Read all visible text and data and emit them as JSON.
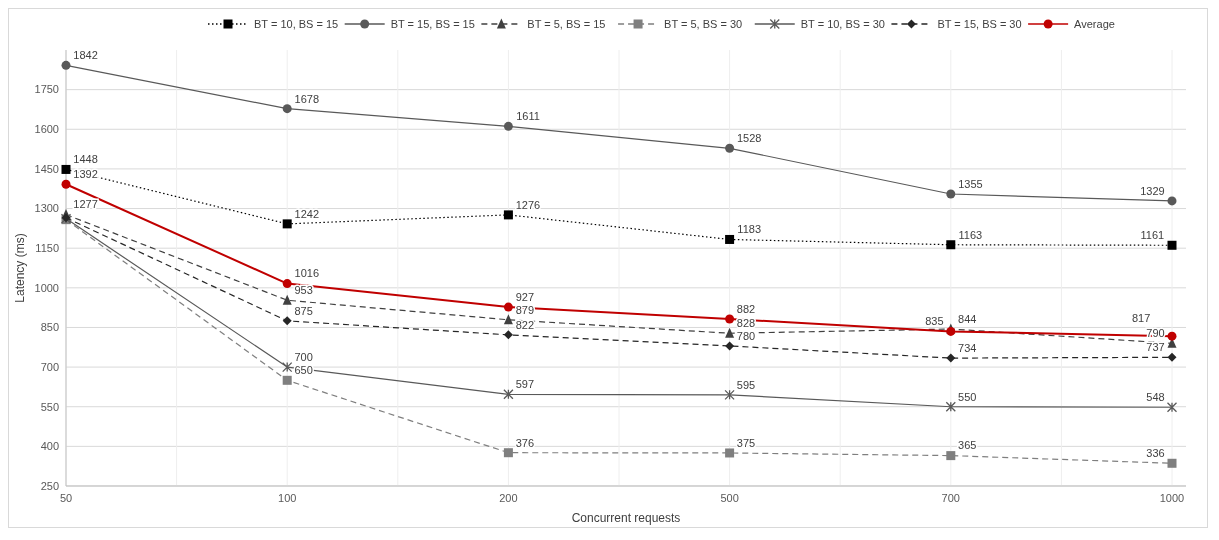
{
  "chart_data": {
    "type": "line",
    "xlabel": "Concurrent requests",
    "ylabel": "Latency (ms)",
    "categories": [
      "50",
      "100",
      "200",
      "500",
      "700",
      "1000"
    ],
    "series": [
      {
        "name": "BT = 10, BS = 15",
        "color": "#000000",
        "marker": "square",
        "line_style": "dotted",
        "values": [
          1448,
          1242,
          1276,
          1183,
          1163,
          1161
        ],
        "value_labels": [
          "1448",
          "1242",
          "1276",
          "1183",
          "1163",
          "1161"
        ]
      },
      {
        "name": "BT = 15, BS = 15",
        "color": "#595959",
        "marker": "circle",
        "line_style": "solid",
        "values": [
          1842,
          1678,
          1611,
          1528,
          1355,
          1329
        ],
        "value_labels": [
          "1842",
          "1678",
          "1611",
          "1528",
          "1355",
          "1329"
        ]
      },
      {
        "name": "BT = 5, BS = 15",
        "color": "#404040",
        "marker": "triangle",
        "line_style": "dashed",
        "values": [
          1277,
          953,
          879,
          828,
          844,
          790
        ],
        "value_labels": [
          "1277",
          "953",
          "879",
          "828",
          "844",
          "790"
        ]
      },
      {
        "name": "BT = 5, BS = 30",
        "color": "#7f7f7f",
        "marker": "square",
        "line_style": "dashed",
        "values": [
          1258,
          650,
          376,
          375,
          365,
          336
        ],
        "value_labels": [
          null,
          "650",
          "376",
          "375",
          "365",
          "336"
        ]
      },
      {
        "name": "BT = 10, BS = 30",
        "color": "#595959",
        "marker": "cross",
        "line_style": "solid",
        "values": [
          1262,
          700,
          597,
          595,
          550,
          548
        ],
        "value_labels": [
          null,
          "700",
          "597",
          "595",
          "550",
          "548"
        ]
      },
      {
        "name": "BT = 15, BS = 30",
        "color": "#262626",
        "marker": "diamond",
        "line_style": "dashed",
        "values": [
          1265,
          875,
          822,
          780,
          734,
          737
        ],
        "value_labels": [
          null,
          "875",
          "822",
          "780",
          "734",
          "737"
        ]
      },
      {
        "name": "Average",
        "color": "#c00000",
        "marker": "circle",
        "line_style": "solid",
        "values": [
          1392,
          1016,
          927,
          882,
          835,
          817
        ],
        "value_labels": [
          "1392",
          "1016",
          "927",
          "882",
          "835",
          "817"
        ]
      }
    ],
    "ylim": [
      250,
      1900
    ],
    "yticks": [
      250,
      400,
      550,
      700,
      850,
      1000,
      1150,
      1300,
      1450,
      1600,
      1750
    ],
    "grid": true,
    "legend": "top"
  }
}
